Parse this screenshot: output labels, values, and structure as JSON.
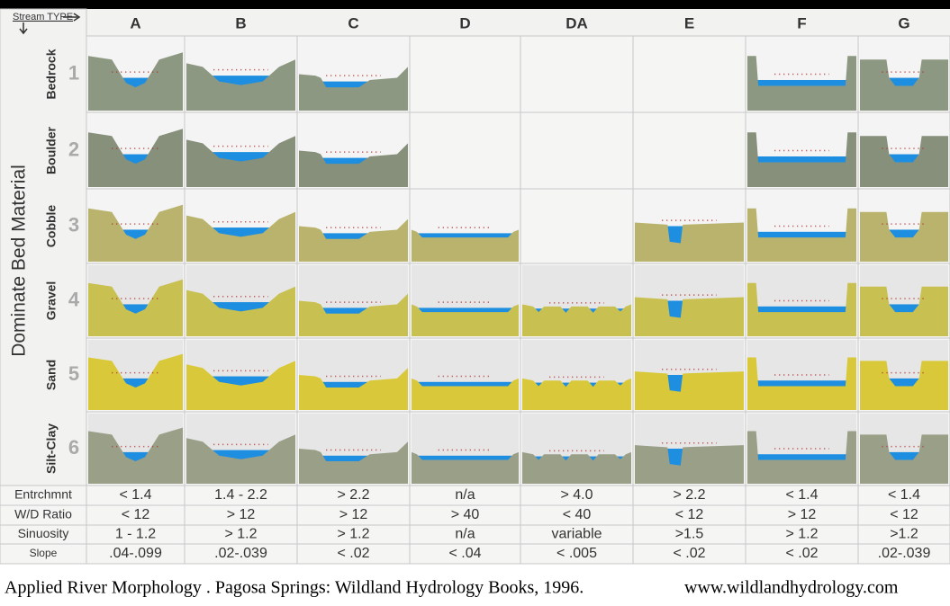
{
  "header": {
    "corner_label": "Stream TYPE",
    "columns": [
      "A",
      "B",
      "C",
      "D",
      "DA",
      "E",
      "F",
      "G"
    ]
  },
  "side_label": "Dominate Bed Material",
  "rows": [
    {
      "material": "Bedrock",
      "number": "1"
    },
    {
      "material": "Boulder",
      "number": "2"
    },
    {
      "material": "Cobble",
      "number": "3"
    },
    {
      "material": "Gravel",
      "number": "4"
    },
    {
      "material": "Sand",
      "number": "5"
    },
    {
      "material": "Silt-Clay",
      "number": "6"
    }
  ],
  "metrics": [
    {
      "label": "Entrchmnt",
      "values": [
        "< 1.4",
        "1.4 - 2.2",
        "> 2.2",
        "n/a",
        "> 4.0",
        "> 2.2",
        "< 1.4",
        "< 1.4"
      ]
    },
    {
      "label": "W/D Ratio",
      "values": [
        "< 12",
        "> 12",
        "> 12",
        "> 40",
        "< 40",
        "< 12",
        "> 12",
        "< 12"
      ]
    },
    {
      "label": "Sinuosity",
      "values": [
        "1 - 1.2",
        "> 1.2",
        "> 1.2",
        "n/a",
        "variable",
        ">1.5",
        "> 1.2",
        ">1.2"
      ]
    },
    {
      "label": "Slope",
      "values": [
        ".04-.099",
        ".02-.039",
        "< .02",
        "< .04",
        "< .005",
        "< .02",
        "< .02",
        ".02-.039"
      ]
    }
  ],
  "citation": "Applied River Morphology . Pagosa Springs: Wildland Hydrology Books, 1996.",
  "url": "www.wildlandhydrology.com"
}
